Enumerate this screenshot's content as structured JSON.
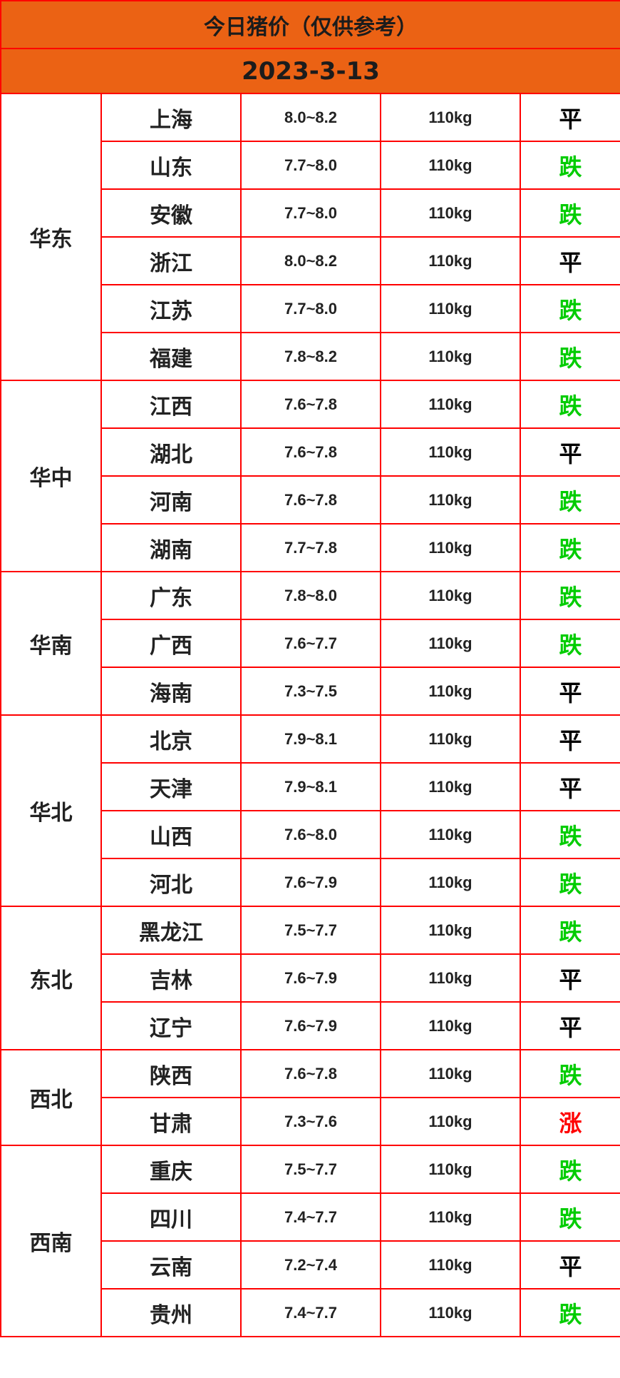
{
  "title": "今日猪价（仅供参考）",
  "date": "2023-3-13",
  "colors": {
    "header_bg": "#eb6214",
    "border": "#ff0000",
    "flat": "#000000",
    "down": "#00cc00",
    "up": "#ff0000"
  },
  "regions": [
    {
      "name": "华东",
      "rows": [
        {
          "province": "上海",
          "price": "8.0~8.2",
          "weight": "110kg",
          "trend": "平"
        },
        {
          "province": "山东",
          "price": "7.7~8.0",
          "weight": "110kg",
          "trend": "跌"
        },
        {
          "province": "安徽",
          "price": "7.7~8.0",
          "weight": "110kg",
          "trend": "跌"
        },
        {
          "province": "浙江",
          "price": "8.0~8.2",
          "weight": "110kg",
          "trend": "平"
        },
        {
          "province": "江苏",
          "price": "7.7~8.0",
          "weight": "110kg",
          "trend": "跌"
        },
        {
          "province": "福建",
          "price": "7.8~8.2",
          "weight": "110kg",
          "trend": "跌"
        }
      ]
    },
    {
      "name": "华中",
      "rows": [
        {
          "province": "江西",
          "price": "7.6~7.8",
          "weight": "110kg",
          "trend": "跌"
        },
        {
          "province": "湖北",
          "price": "7.6~7.8",
          "weight": "110kg",
          "trend": "平"
        },
        {
          "province": "河南",
          "price": "7.6~7.8",
          "weight": "110kg",
          "trend": "跌"
        },
        {
          "province": "湖南",
          "price": "7.7~7.8",
          "weight": "110kg",
          "trend": "跌"
        }
      ]
    },
    {
      "name": "华南",
      "rows": [
        {
          "province": "广东",
          "price": "7.8~8.0",
          "weight": "110kg",
          "trend": "跌"
        },
        {
          "province": "广西",
          "price": "7.6~7.7",
          "weight": "110kg",
          "trend": "跌"
        },
        {
          "province": "海南",
          "price": "7.3~7.5",
          "weight": "110kg",
          "trend": "平"
        }
      ]
    },
    {
      "name": "华北",
      "rows": [
        {
          "province": "北京",
          "price": "7.9~8.1",
          "weight": "110kg",
          "trend": "平"
        },
        {
          "province": "天津",
          "price": "7.9~8.1",
          "weight": "110kg",
          "trend": "平"
        },
        {
          "province": "山西",
          "price": "7.6~8.0",
          "weight": "110kg",
          "trend": "跌"
        },
        {
          "province": "河北",
          "price": "7.6~7.9",
          "weight": "110kg",
          "trend": "跌"
        }
      ]
    },
    {
      "name": "东北",
      "rows": [
        {
          "province": "黑龙江",
          "price": "7.5~7.7",
          "weight": "110kg",
          "trend": "跌"
        },
        {
          "province": "吉林",
          "price": "7.6~7.9",
          "weight": "110kg",
          "trend": "平"
        },
        {
          "province": "辽宁",
          "price": "7.6~7.9",
          "weight": "110kg",
          "trend": "平"
        }
      ]
    },
    {
      "name": "西北",
      "rows": [
        {
          "province": "陕西",
          "price": "7.6~7.8",
          "weight": "110kg",
          "trend": "跌"
        },
        {
          "province": "甘肃",
          "price": "7.3~7.6",
          "weight": "110kg",
          "trend": "涨"
        }
      ]
    },
    {
      "name": "西南",
      "rows": [
        {
          "province": "重庆",
          "price": "7.5~7.7",
          "weight": "110kg",
          "trend": "跌"
        },
        {
          "province": "四川",
          "price": "7.4~7.7",
          "weight": "110kg",
          "trend": "跌"
        },
        {
          "province": "云南",
          "price": "7.2~7.4",
          "weight": "110kg",
          "trend": "平"
        },
        {
          "province": "贵州",
          "price": "7.4~7.7",
          "weight": "110kg",
          "trend": "跌"
        }
      ]
    }
  ]
}
